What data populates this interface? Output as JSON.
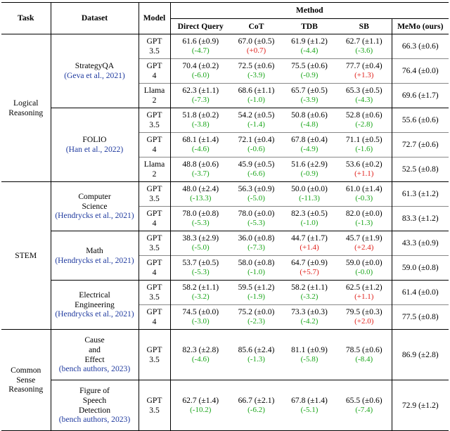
{
  "header": {
    "task": "Task",
    "dataset": "Dataset",
    "model": "Model",
    "method": "Method",
    "methods": [
      "Direct Query",
      "CoT",
      "TDB",
      "SB",
      "MeMo (ours)"
    ]
  },
  "groups": [
    {
      "task": [
        "Logical",
        "Reasoning"
      ],
      "datasets": [
        {
          "name": [
            "StrategyQA"
          ],
          "cite": "Geva et al., 2021",
          "rows": [
            {
              "model": [
                "GPT",
                "3.5"
              ],
              "cells": [
                [
                  "61.6 (±0.9)",
                  "(-4.7)",
                  "neg"
                ],
                [
                  "67.0 (±0.5)",
                  "(+0.7)",
                  "pos"
                ],
                [
                  "61.9 (±1.2)",
                  "(-4.4)",
                  "neg"
                ],
                [
                  "62.7 (±1.1)",
                  "(-3.6)",
                  "neg"
                ]
              ],
              "memo": "66.3 (±0.6)"
            },
            {
              "model": [
                "GPT",
                "4"
              ],
              "cells": [
                [
                  "70.4 (±0.2)",
                  "(-6.0)",
                  "neg"
                ],
                [
                  "72.5 (±0.6)",
                  "(-3.9)",
                  "neg"
                ],
                [
                  "75.5 (±0.6)",
                  "(-0.9)",
                  "neg"
                ],
                [
                  "77.7 (±0.4)",
                  "(+1.3)",
                  "pos"
                ]
              ],
              "memo": "76.4 (±0.0)"
            },
            {
              "model": [
                "Llama",
                "2"
              ],
              "cells": [
                [
                  "62.3 (±1.1)",
                  "(-7.3)",
                  "neg"
                ],
                [
                  "68.6 (±1.1)",
                  "(-1.0)",
                  "neg"
                ],
                [
                  "65.7 (±0.5)",
                  "(-3.9)",
                  "neg"
                ],
                [
                  "65.3 (±0.5)",
                  "(-4.3)",
                  "neg"
                ]
              ],
              "memo": "69.6 (±1.7)"
            }
          ]
        },
        {
          "name": [
            "FOLIO"
          ],
          "cite": "Han et al., 2022",
          "rows": [
            {
              "model": [
                "GPT",
                "3.5"
              ],
              "cells": [
                [
                  "51.8 (±0.2)",
                  "(-3.8)",
                  "neg"
                ],
                [
                  "54.2 (±0.5)",
                  "(-1.4)",
                  "neg"
                ],
                [
                  "50.8 (±0.6)",
                  "(-4.8)",
                  "neg"
                ],
                [
                  "52.8 (±0.6)",
                  "(-2.8)",
                  "neg"
                ]
              ],
              "memo": "55.6 (±0.6)"
            },
            {
              "model": [
                "GPT",
                "4"
              ],
              "cells": [
                [
                  "68.1 (±1.4)",
                  "(-4.6)",
                  "neg"
                ],
                [
                  "72.1 (±0.4)",
                  "(-0.6)",
                  "neg"
                ],
                [
                  "67.8 (±0.4)",
                  "(-4.9)",
                  "neg"
                ],
                [
                  "71.1 (±0.5)",
                  "(-1.6)",
                  "neg"
                ]
              ],
              "memo": "72.7 (±0.6)"
            },
            {
              "model": [
                "Llama",
                "2"
              ],
              "cells": [
                [
                  "48.8 (±0.6)",
                  "(-3.7)",
                  "neg"
                ],
                [
                  "45.9 (±0.5)",
                  "(-6.6)",
                  "neg"
                ],
                [
                  "51.6 (±2.9)",
                  "(-0.9)",
                  "neg"
                ],
                [
                  "53.6 (±0.2)",
                  "(+1.1)",
                  "pos"
                ]
              ],
              "memo": "52.5 (±0.8)"
            }
          ]
        }
      ]
    },
    {
      "task": [
        "STEM"
      ],
      "datasets": [
        {
          "name": [
            "Computer",
            "Science"
          ],
          "cite": "Hendrycks et al., 2021",
          "rows": [
            {
              "model": [
                "GPT",
                "3.5"
              ],
              "cells": [
                [
                  "48.0 (±2.4)",
                  "(-13.3)",
                  "neg"
                ],
                [
                  "56.3 (±0.9)",
                  "(-5.0)",
                  "neg"
                ],
                [
                  "50.0 (±0.0)",
                  "(-11.3)",
                  "neg"
                ],
                [
                  "61.0 (±1.4)",
                  "(-0.3)",
                  "neg"
                ]
              ],
              "memo": "61.3 (±1.2)"
            },
            {
              "model": [
                "GPT",
                "4"
              ],
              "cells": [
                [
                  "78.0 (±0.8)",
                  "(-5.3)",
                  "neg"
                ],
                [
                  "78.0 (±0.0)",
                  "(-5.3)",
                  "neg"
                ],
                [
                  "82.3 (±0.5)",
                  "(-1.0)",
                  "neg"
                ],
                [
                  "82.0 (±0.0)",
                  "(-1.3)",
                  "neg"
                ]
              ],
              "memo": "83.3 (±1.2)"
            }
          ]
        },
        {
          "name": [
            "Math"
          ],
          "cite": "Hendrycks et al., 2021",
          "rows": [
            {
              "model": [
                "GPT",
                "3.5"
              ],
              "cells": [
                [
                  "38.3 (±2.9)",
                  "(-5.0)",
                  "neg"
                ],
                [
                  "36.0 (±0.8)",
                  "(-7.3)",
                  "neg"
                ],
                [
                  "44.7 (±1.7)",
                  "(+1.4)",
                  "pos"
                ],
                [
                  "45.7 (±1.9)",
                  "(+2.4)",
                  "pos"
                ]
              ],
              "memo": "43.3 (±0.9)"
            },
            {
              "model": [
                "GPT",
                "4"
              ],
              "cells": [
                [
                  "53.7 (±0.5)",
                  "(-5.3)",
                  "neg"
                ],
                [
                  "58.0 (±0.8)",
                  "(-1.0)",
                  "neg"
                ],
                [
                  "64.7 (±0.9)",
                  "(+5.7)",
                  "pos"
                ],
                [
                  "59.0 (±0.0)",
                  "(-0.0)",
                  "neg"
                ]
              ],
              "memo": "59.0 (±0.8)"
            }
          ]
        },
        {
          "name": [
            "Electrical",
            "Engineering"
          ],
          "cite": "Hendrycks et al., 2021",
          "rows": [
            {
              "model": [
                "GPT",
                "3.5"
              ],
              "cells": [
                [
                  "58.2 (±1.1)",
                  "(-3.2)",
                  "neg"
                ],
                [
                  "59.5 (±1.2)",
                  "(-1.9)",
                  "neg"
                ],
                [
                  "58.2 (±1.1)",
                  "(-3.2)",
                  "neg"
                ],
                [
                  "62.5 (±1.2)",
                  "(+1.1)",
                  "pos"
                ]
              ],
              "memo": "61.4 (±0.0)"
            },
            {
              "model": [
                "GPT",
                "4"
              ],
              "cells": [
                [
                  "74.5 (±0.0)",
                  "(-3.0)",
                  "neg"
                ],
                [
                  "75.2 (±0.0)",
                  "(-2.3)",
                  "neg"
                ],
                [
                  "73.3 (±0.3)",
                  "(-4.2)",
                  "neg"
                ],
                [
                  "79.5 (±0.3)",
                  "(+2.0)",
                  "pos"
                ]
              ],
              "memo": "77.5 (±0.8)"
            }
          ]
        }
      ]
    },
    {
      "task": [
        "Common",
        "Sense",
        "Reasoning"
      ],
      "datasets": [
        {
          "name": [
            "Cause",
            "and",
            "Effect"
          ],
          "cite": "bench authors, 2023",
          "rows": [
            {
              "model": [
                "GPT",
                "3.5"
              ],
              "cells": [
                [
                  "82.3 (±2.8)",
                  "(-4.6)",
                  "neg"
                ],
                [
                  "85.6 (±2.4)",
                  "(-1.3)",
                  "neg"
                ],
                [
                  "81.1 (±0.9)",
                  "(-5.8)",
                  "neg"
                ],
                [
                  "78.5 (±0.6)",
                  "(-8.4)",
                  "neg"
                ]
              ],
              "memo": "86.9 (±2.8)"
            }
          ]
        },
        {
          "name": [
            "Figure of",
            "Speech",
            "Detection"
          ],
          "cite": "bench authors, 2023",
          "rows": [
            {
              "model": [
                "GPT",
                "3.5"
              ],
              "cells": [
                [
                  "62.7 (±1.4)",
                  "(-10.2)",
                  "neg"
                ],
                [
                  "66.7 (±2.1)",
                  "(-6.2)",
                  "neg"
                ],
                [
                  "67.8 (±1.4)",
                  "(-5.1)",
                  "neg"
                ],
                [
                  "65.5 (±0.6)",
                  "(-7.4)",
                  "neg"
                ]
              ],
              "memo": "72.9 (±1.2)"
            }
          ]
        }
      ]
    }
  ]
}
